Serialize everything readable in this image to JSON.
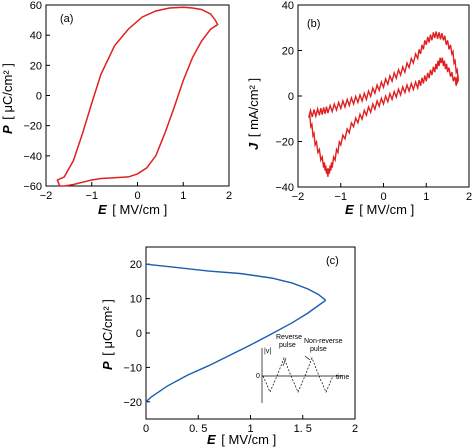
{
  "chart_data": [
    {
      "type": "line",
      "panel_label": "(a)",
      "xlabel_var": "E",
      "xlabel_unit": "[ MV/cm ]",
      "ylabel_var": "P",
      "ylabel_unit": "[ μC/cm² ]",
      "xlim": [
        -2,
        2
      ],
      "ylim": [
        -60,
        60
      ],
      "x_ticks": [
        "−2",
        "−1",
        "0",
        "1",
        "2"
      ],
      "y_ticks": [
        "60",
        "40",
        "20",
        "0",
        "−20",
        "−40",
        "−60"
      ],
      "grid": false,
      "color": "#e02020",
      "x": [
        1.75,
        1.7,
        1.6,
        1.4,
        1.2,
        1.0,
        0.7,
        0.4,
        0.1,
        -0.2,
        -0.5,
        -0.8,
        -1.0,
        -1.2,
        -1.4,
        -1.6,
        -1.75,
        -1.7,
        -1.6,
        -1.4,
        -1.2,
        -1.0,
        -0.8,
        -0.5,
        -0.2,
        0.0,
        0.2,
        0.4,
        0.6,
        0.8,
        1.0,
        1.2,
        1.4,
        1.6,
        1.75
      ],
      "y": [
        47,
        50,
        54,
        57,
        58,
        58.5,
        58,
        56,
        52,
        44,
        33,
        14,
        -5,
        -25,
        -43,
        -54,
        -56,
        -60,
        -60,
        -59,
        -57.5,
        -56,
        -55,
        -54.5,
        -54,
        -52,
        -48,
        -40,
        -25,
        -8,
        10,
        25,
        36,
        44,
        47
      ]
    },
    {
      "type": "line",
      "panel_label": "(b)",
      "xlabel_var": "E",
      "xlabel_unit": "[ MV/cm ]",
      "ylabel_var": "J",
      "ylabel_unit": "[ mA/cm² ]",
      "xlim": [
        -2,
        2
      ],
      "ylim": [
        -40,
        40
      ],
      "x_ticks": [
        "−2",
        "−1",
        "0",
        "1",
        "2"
      ],
      "y_ticks": [
        "40",
        "20",
        "0",
        "−20",
        "−40"
      ],
      "grid": false,
      "color": "#e02020",
      "x": [
        -1.75,
        -1.6,
        -1.4,
        -1.3,
        -1.2,
        -1.0,
        -0.7,
        -0.4,
        -0.1,
        0.2,
        0.5,
        0.8,
        1.0,
        1.2,
        1.35,
        1.5,
        1.7,
        1.75,
        1.6,
        1.4,
        1.2,
        1.0,
        0.8,
        0.5,
        0.2,
        -0.1,
        -0.4,
        -0.7,
        -1.0,
        -1.3,
        -1.5,
        -1.75
      ],
      "y": [
        -8,
        -20,
        -30,
        -34,
        -30,
        -20,
        -12,
        -7,
        -3,
        0,
        3,
        5,
        8,
        12,
        16,
        12,
        6,
        8,
        20,
        26,
        27,
        24,
        18,
        12,
        8,
        4,
        0,
        -2,
        -4,
        -6,
        -7,
        -8
      ]
    },
    {
      "type": "line",
      "panel_label": "(c)",
      "xlabel_var": "E",
      "xlabel_unit": "[ MV/cm ]",
      "ylabel_var": "P",
      "ylabel_unit": "[ μC/cm² ]",
      "xlim": [
        0,
        2
      ],
      "ylim": [
        -25,
        25
      ],
      "x_ticks": [
        "0",
        "0. 5",
        "1",
        "1. 5",
        "2"
      ],
      "y_ticks": [
        "20",
        "10",
        "0",
        "−10",
        "−20"
      ],
      "grid": false,
      "color": "#1a5faf",
      "series": [
        {
          "x": [
            0,
            0.3,
            0.6,
            0.9,
            1.2,
            1.4,
            1.55,
            1.65,
            1.72
          ],
          "y": [
            20,
            19,
            18,
            17.3,
            16,
            14.5,
            12.8,
            11.2,
            9.5
          ]
        },
        {
          "x": [
            0,
            0.05,
            0.2,
            0.4,
            0.6,
            0.8,
            1.0,
            1.2,
            1.4,
            1.55,
            1.65,
            1.72
          ],
          "y": [
            -20,
            -18.6,
            -15.5,
            -12.2,
            -9.5,
            -6.5,
            -3.5,
            -0.3,
            3,
            5.8,
            8,
            9.5
          ]
        }
      ],
      "inset": {
        "label_reverse": "Reverse",
        "label_reverse_2": "pulse",
        "label_nonreverse": "Non-reverse",
        "label_nonreverse_2": "pulse",
        "label_v": "|v|",
        "label_0": "0",
        "label_time": "time"
      }
    }
  ]
}
